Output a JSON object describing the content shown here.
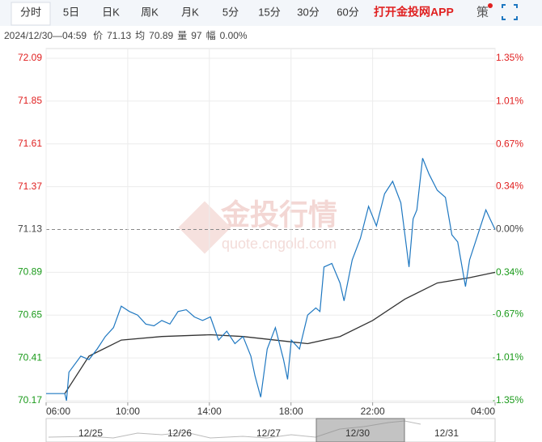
{
  "tabs": [
    "分时",
    "5日",
    "日K",
    "周K",
    "月K",
    "5分",
    "15分",
    "30分",
    "60分"
  ],
  "app_link": "打开金投网APP",
  "strategy": "策",
  "info": [
    "2024/12/30—04:59",
    "价",
    "71.13",
    "均",
    "70.89",
    "量",
    "97",
    "幅",
    "0.00%"
  ],
  "watermark": {
    "brand": "金投行情",
    "site": "quote.cngold.com"
  },
  "navigator": {
    "dates": [
      "12/25",
      "12/26",
      "12/27",
      "12/30",
      "12/31"
    ]
  },
  "chart_data": {
    "type": "line",
    "xlim": [
      0,
      1320
    ],
    "xticks": [
      {
        "value": 0,
        "label": "06:00"
      },
      {
        "value": 240,
        "label": "10:00"
      },
      {
        "value": 480,
        "label": "14:00"
      },
      {
        "value": 720,
        "label": "18:00"
      },
      {
        "value": 960,
        "label": "22:00"
      },
      {
        "value": 1320,
        "label": "04:00"
      }
    ],
    "ylim": [
      70.17,
      72.09
    ],
    "yticks": [
      72.09,
      71.85,
      71.61,
      71.37,
      71.13,
      70.89,
      70.65,
      70.41,
      70.17
    ],
    "y2lim": [
      -1.35,
      1.35
    ],
    "y2ticks": [
      {
        "value": 1.35,
        "label": "1.35%"
      },
      {
        "value": 1.01,
        "label": "1.01%"
      },
      {
        "value": 0.67,
        "label": "0.67%"
      },
      {
        "value": 0.34,
        "label": "0.34%"
      },
      {
        "value": 0,
        "label": "0.00%"
      },
      {
        "value": -0.34,
        "label": "-0.34%"
      },
      {
        "value": -0.67,
        "label": "-0.67%"
      },
      {
        "value": -1.01,
        "label": "-1.01%"
      },
      {
        "value": -1.35,
        "label": "-1.35%"
      }
    ],
    "reference": 71.13,
    "grid": true,
    "up_color": "#e02020",
    "down_color": "#1a9a1a",
    "flat_color": "#444444",
    "series": [
      {
        "color": "#1f78c1",
        "x": [
          0,
          55,
          60,
          67,
          102,
          126,
          150,
          174,
          198,
          221,
          245,
          269,
          293,
          317,
          340,
          364,
          388,
          412,
          436,
          460,
          483,
          507,
          531,
          555,
          579,
          602,
          614,
          631,
          650,
          674,
          698,
          710,
          721,
          745,
          769,
          793,
          805,
          817,
          840,
          864,
          876,
          900,
          924,
          948,
          971,
          995,
          1019,
          1043,
          1067,
          1079,
          1090,
          1107,
          1126,
          1150,
          1174,
          1193,
          1210,
          1233,
          1245,
          1269,
          1293,
          1305,
          1320
        ],
        "values": [
          70.21,
          70.21,
          70.17,
          70.33,
          70.42,
          70.4,
          70.46,
          70.53,
          70.58,
          70.7,
          70.67,
          70.65,
          70.6,
          70.59,
          70.62,
          70.6,
          70.67,
          70.68,
          70.64,
          70.62,
          70.64,
          70.51,
          70.56,
          70.49,
          70.53,
          70.42,
          70.31,
          70.19,
          70.46,
          70.58,
          70.4,
          70.29,
          70.51,
          70.46,
          70.65,
          70.69,
          70.67,
          70.92,
          70.94,
          70.83,
          70.73,
          70.96,
          71.08,
          71.26,
          71.15,
          71.33,
          71.4,
          71.28,
          70.92,
          71.19,
          71.24,
          71.53,
          71.44,
          71.35,
          71.31,
          71.1,
          71.06,
          70.81,
          70.96,
          71.1,
          71.24,
          71.19,
          71.13
        ]
      },
      {
        "color": "#333333",
        "x": [
          55,
          126,
          221,
          340,
          483,
          579,
          721,
          769,
          864,
          960,
          1055,
          1150,
          1245,
          1320
        ],
        "values": [
          70.21,
          70.42,
          70.51,
          70.53,
          70.54,
          70.53,
          70.5,
          70.49,
          70.53,
          70.62,
          70.74,
          70.83,
          70.86,
          70.89
        ]
      }
    ]
  }
}
